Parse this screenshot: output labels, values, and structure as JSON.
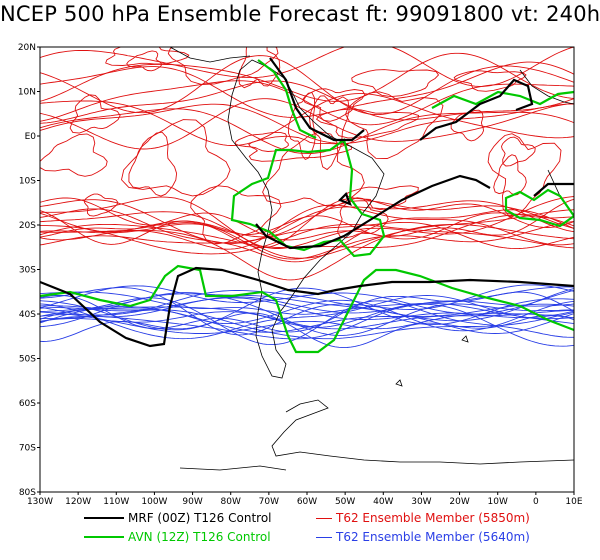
{
  "title": "NCEP 500 hPa Ensemble Forecast  ft: 99091800 vt: 240h",
  "colors": {
    "mrf": "#000000",
    "avn": "#00c800",
    "t62_5850": "#e01010",
    "t62_5640": "#2a3fe6",
    "coast": "#000000"
  },
  "axes": {
    "lon_ticks": [
      "130W",
      "120W",
      "110W",
      "100W",
      "90W",
      "80W",
      "70W",
      "60W",
      "50W",
      "40W",
      "30W",
      "20W",
      "10W",
      "0",
      "10E"
    ],
    "lat_ticks": [
      "20N",
      "10N",
      "E0",
      "10S",
      "20S",
      "30S",
      "40S",
      "50S",
      "60S",
      "70S",
      "80S"
    ]
  },
  "legend": [
    {
      "key": "mrf",
      "label": "MRF (00Z) T126 Control"
    },
    {
      "key": "t62_5850",
      "label": "T62 Ensemble Member (5850m)"
    },
    {
      "key": "avn",
      "label": "AVN (12Z) T126 Control"
    },
    {
      "key": "t62_5640",
      "label": "T62 Ensemble Member (5640m)"
    }
  ]
}
